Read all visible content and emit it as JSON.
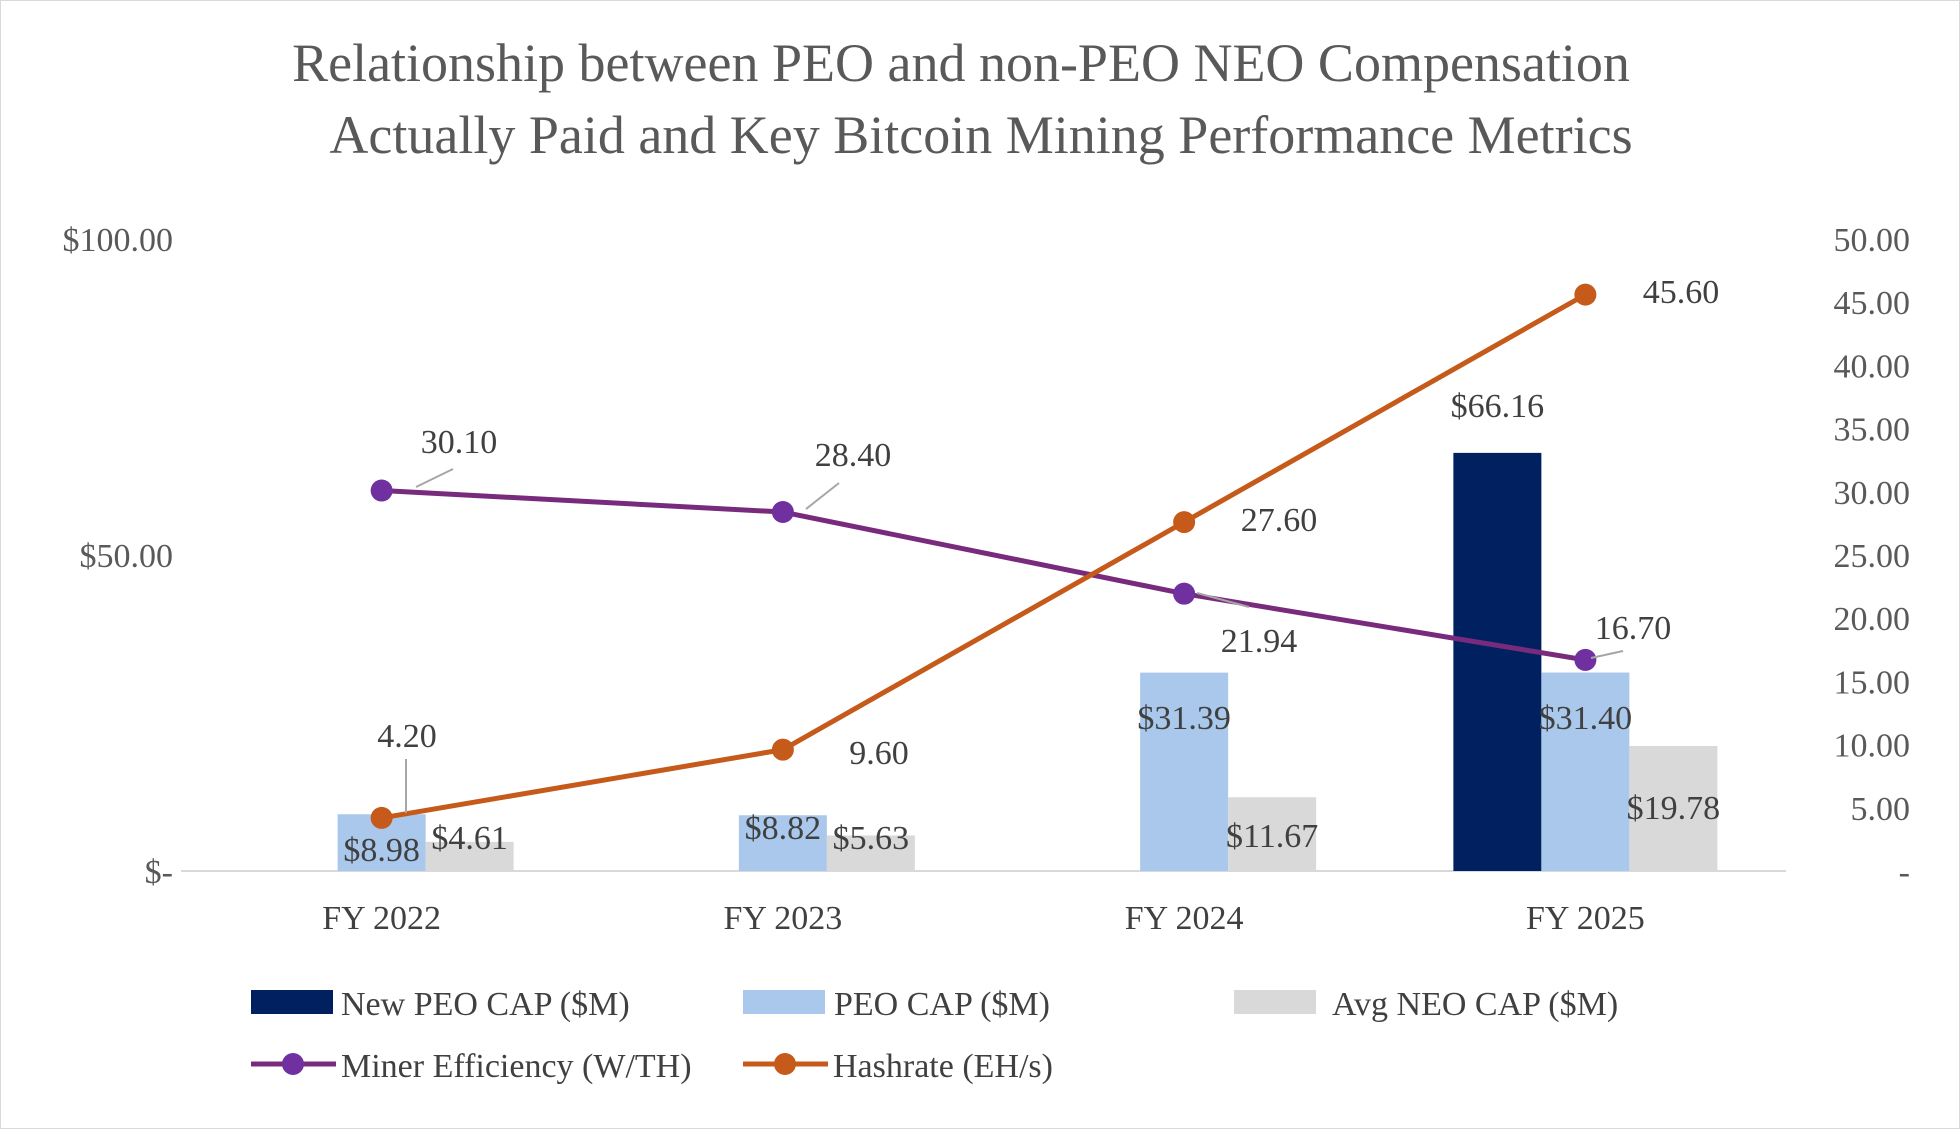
{
  "chart_data": {
    "type": "bar",
    "title_line1": "Relationship between PEO and non-PEO NEO Compensation",
    "title_line2": "Actually Paid and Key Bitcoin Mining Performance Metrics",
    "categories": [
      "FY 2022",
      "FY 2023",
      "FY 2024",
      "FY 2025"
    ],
    "y_left": {
      "min": 0,
      "max": 100,
      "ticks": [
        0,
        50,
        100
      ],
      "tick_labels": [
        "$-",
        "$50.00",
        "$100.00"
      ]
    },
    "y_right": {
      "min": 0,
      "max": 50,
      "ticks": [
        0,
        5,
        10,
        15,
        20,
        25,
        30,
        35,
        40,
        45,
        50
      ],
      "tick_labels": [
        "-",
        "5.00",
        "10.00",
        "15.00",
        "20.00",
        "25.00",
        "30.00",
        "35.00",
        "40.00",
        "45.00",
        "50.00"
      ]
    },
    "bar_series": [
      {
        "name": "New PEO CAP ($M)",
        "color": "#002060",
        "values": [
          null,
          null,
          null,
          66.16
        ],
        "labels": [
          "",
          "",
          "",
          "$66.16"
        ]
      },
      {
        "name": "PEO CAP ($M)",
        "color": "#a9c8ec",
        "values": [
          8.98,
          8.82,
          31.39,
          31.4
        ],
        "labels": [
          "$8.98",
          "$8.82",
          "$31.39",
          "$31.40"
        ]
      },
      {
        "name": "Avg NEO CAP ($M)",
        "color": "#d9d9d9",
        "values": [
          4.61,
          5.63,
          11.67,
          19.78
        ],
        "labels": [
          "$4.61",
          "$5.63",
          "$11.67",
          "$19.78"
        ]
      }
    ],
    "line_series": [
      {
        "name": "Miner Efficiency (W/TH)",
        "color": "#782a7c",
        "marker": "#7030a0",
        "axis": "right",
        "values": [
          30.1,
          28.4,
          21.94,
          16.7
        ],
        "labels": [
          "30.10",
          "28.40",
          "21.94",
          "16.70"
        ]
      },
      {
        "name": "Hashrate (EH/s)",
        "color": "#c55a1a",
        "marker": "#c55a1a",
        "axis": "right",
        "values": [
          4.2,
          9.6,
          27.6,
          45.6
        ],
        "labels": [
          "4.20",
          "9.60",
          "27.60",
          "45.60"
        ]
      }
    ]
  }
}
